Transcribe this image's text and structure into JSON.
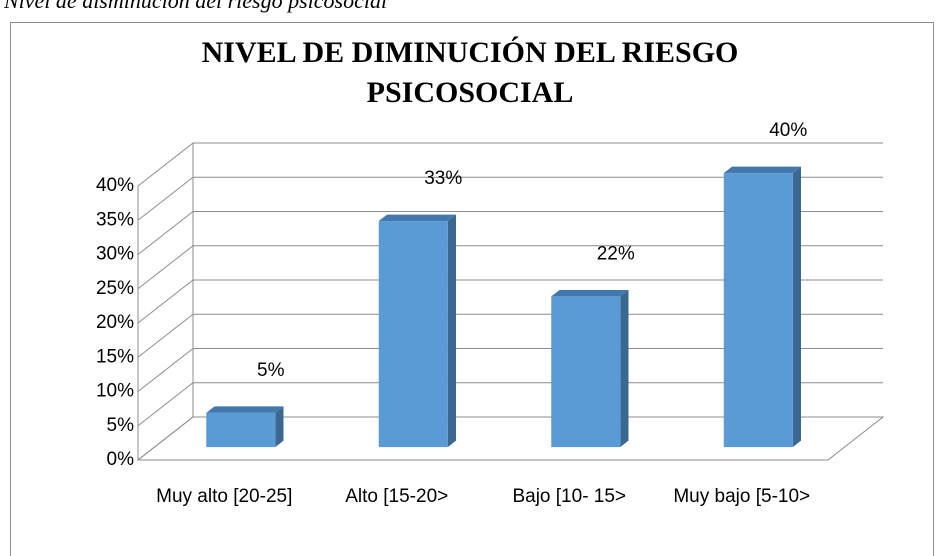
{
  "caption": "Nivel de disminución del riesgo psicosocial",
  "chart_data": {
    "type": "bar3d",
    "title": "NIVEL DE DIMINUCIÓN DEL RIESGO PSICOSOCIAL",
    "categories": [
      "Muy alto [20-25]",
      "Alto [15-20>",
      "Bajo [10- 15>",
      "Muy bajo [5-10>"
    ],
    "values": [
      5,
      33,
      22,
      40
    ],
    "value_labels": [
      "5%",
      "33%",
      "22%",
      "40%"
    ],
    "color": "#5b9bd5",
    "ylim": [
      0,
      40
    ],
    "yticks": [
      {
        "value": 0,
        "label": "0%"
      },
      {
        "value": 5,
        "label": "5%"
      },
      {
        "value": 10,
        "label": "10%"
      },
      {
        "value": 15,
        "label": "15%"
      },
      {
        "value": 20,
        "label": "20%"
      },
      {
        "value": 25,
        "label": "25%"
      },
      {
        "value": 30,
        "label": "30%"
      },
      {
        "value": 35,
        "label": "35%"
      },
      {
        "value": 40,
        "label": "40%"
      }
    ],
    "grid": true
  }
}
